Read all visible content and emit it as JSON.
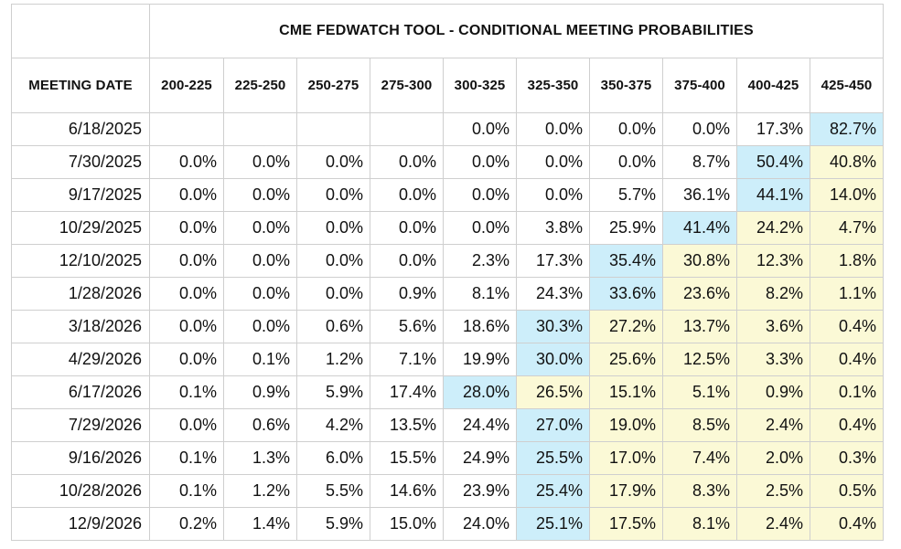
{
  "chart_data": {
    "type": "table",
    "title": "CME FEDWATCH TOOL - CONDITIONAL MEETING PROBABILITIES",
    "row_header": "MEETING DATE",
    "columns": [
      "200-225",
      "225-250",
      "250-275",
      "275-300",
      "300-325",
      "325-350",
      "350-375",
      "375-400",
      "400-425",
      "425-450"
    ],
    "rows": [
      {
        "date": "6/18/2025",
        "values": [
          "",
          "",
          "",
          "",
          "0.0%",
          "0.0%",
          "0.0%",
          "0.0%",
          "17.3%",
          "82.7%"
        ]
      },
      {
        "date": "7/30/2025",
        "values": [
          "0.0%",
          "0.0%",
          "0.0%",
          "0.0%",
          "0.0%",
          "0.0%",
          "0.0%",
          "8.7%",
          "50.4%",
          "40.8%"
        ]
      },
      {
        "date": "9/17/2025",
        "values": [
          "0.0%",
          "0.0%",
          "0.0%",
          "0.0%",
          "0.0%",
          "0.0%",
          "5.7%",
          "36.1%",
          "44.1%",
          "14.0%"
        ]
      },
      {
        "date": "10/29/2025",
        "values": [
          "0.0%",
          "0.0%",
          "0.0%",
          "0.0%",
          "0.0%",
          "3.8%",
          "25.9%",
          "41.4%",
          "24.2%",
          "4.7%"
        ]
      },
      {
        "date": "12/10/2025",
        "values": [
          "0.0%",
          "0.0%",
          "0.0%",
          "0.0%",
          "2.3%",
          "17.3%",
          "35.4%",
          "30.8%",
          "12.3%",
          "1.8%"
        ]
      },
      {
        "date": "1/28/2026",
        "values": [
          "0.0%",
          "0.0%",
          "0.0%",
          "0.9%",
          "8.1%",
          "24.3%",
          "33.6%",
          "23.6%",
          "8.2%",
          "1.1%"
        ]
      },
      {
        "date": "3/18/2026",
        "values": [
          "0.0%",
          "0.0%",
          "0.6%",
          "5.6%",
          "18.6%",
          "30.3%",
          "27.2%",
          "13.7%",
          "3.6%",
          "0.4%"
        ]
      },
      {
        "date": "4/29/2026",
        "values": [
          "0.0%",
          "0.1%",
          "1.2%",
          "7.1%",
          "19.9%",
          "30.0%",
          "25.6%",
          "12.5%",
          "3.3%",
          "0.4%"
        ]
      },
      {
        "date": "6/17/2026",
        "values": [
          "0.1%",
          "0.9%",
          "5.9%",
          "17.4%",
          "28.0%",
          "26.5%",
          "15.1%",
          "5.1%",
          "0.9%",
          "0.1%"
        ]
      },
      {
        "date": "7/29/2026",
        "values": [
          "0.0%",
          "0.6%",
          "4.2%",
          "13.5%",
          "24.4%",
          "27.0%",
          "19.0%",
          "8.5%",
          "2.4%",
          "0.4%"
        ]
      },
      {
        "date": "9/16/2026",
        "values": [
          "0.1%",
          "1.3%",
          "6.0%",
          "15.5%",
          "24.9%",
          "25.5%",
          "17.0%",
          "7.4%",
          "2.0%",
          "0.3%"
        ]
      },
      {
        "date": "10/28/2026",
        "values": [
          "0.1%",
          "1.2%",
          "5.5%",
          "14.6%",
          "23.9%",
          "25.4%",
          "17.9%",
          "8.3%",
          "2.5%",
          "0.5%"
        ]
      },
      {
        "date": "12/9/2026",
        "values": [
          "0.2%",
          "1.4%",
          "5.9%",
          "15.0%",
          "24.0%",
          "25.1%",
          "17.5%",
          "8.1%",
          "2.4%",
          "0.4%"
        ]
      }
    ],
    "highlight_max_column": [
      9,
      8,
      8,
      7,
      6,
      6,
      5,
      5,
      4,
      5,
      5,
      5,
      5
    ],
    "colors": {
      "highlight_max": "#cdeefa",
      "highlight_current_above": "#fbf9d6",
      "border": "#cfcfcf"
    }
  }
}
